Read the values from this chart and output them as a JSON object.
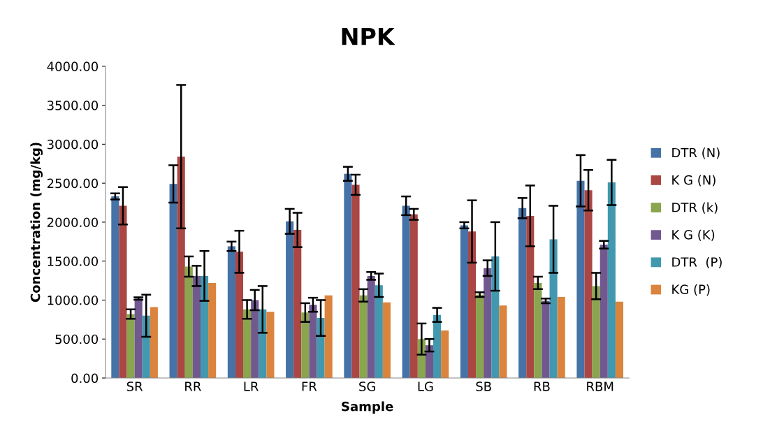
{
  "chart_data": {
    "type": "bar",
    "title": "NPK",
    "xlabel": "Sample",
    "ylabel": "Concentration (mg/kg)",
    "categories": [
      "SR",
      "RR",
      "LR",
      "FR",
      "SG",
      "LG",
      "SB",
      "RB",
      "RBM"
    ],
    "ylim": [
      0,
      4000
    ],
    "yticks": [
      {
        "value": 0,
        "label": "0.00"
      },
      {
        "value": 500,
        "label": "500.00"
      },
      {
        "value": 1000,
        "label": "1000.00"
      },
      {
        "value": 1500,
        "label": "1500.00"
      },
      {
        "value": 2000,
        "label": "2000.00"
      },
      {
        "value": 2500,
        "label": "2500.00"
      },
      {
        "value": 3000,
        "label": "3000.00"
      },
      {
        "value": 3500,
        "label": "3500.00"
      },
      {
        "value": 4000,
        "label": "4000.00"
      }
    ],
    "grid": false,
    "legend": "right",
    "series": [
      {
        "name": "DTR (N)",
        "color": "#4572a7",
        "values": [
          2330,
          2490,
          1690,
          2010,
          2620,
          2210,
          1960,
          2180,
          2530
        ],
        "errors": [
          40,
          240,
          60,
          160,
          90,
          120,
          40,
          130,
          330
        ]
      },
      {
        "name": "K G (N)",
        "color": "#aa4643",
        "values": [
          2210,
          2840,
          1620,
          1900,
          2480,
          2100,
          1880,
          2080,
          2410
        ],
        "errors": [
          240,
          920,
          270,
          220,
          130,
          70,
          400,
          390,
          260
        ]
      },
      {
        "name": "DTR (k)",
        "color": "#89a54e",
        "values": [
          820,
          1430,
          880,
          840,
          1060,
          500,
          1070,
          1220,
          1180
        ],
        "errors": [
          60,
          130,
          120,
          120,
          80,
          200,
          30,
          80,
          170
        ]
      },
      {
        "name": "K G (K)",
        "color": "#71588f",
        "values": [
          1020,
          1310,
          1000,
          940,
          1310,
          420,
          1410,
          990,
          1710
        ],
        "errors": [
          15,
          130,
          130,
          90,
          50,
          80,
          100,
          30,
          50
        ]
      },
      {
        "name": "DTR  (P)",
        "color": "#4198af",
        "values": [
          800,
          1310,
          880,
          770,
          1190,
          810,
          1560,
          1780,
          2510
        ],
        "errors": [
          270,
          320,
          300,
          230,
          150,
          90,
          440,
          430,
          290
        ]
      },
      {
        "name": "KG (P)",
        "color": "#db843d",
        "values": [
          910,
          1220,
          850,
          1060,
          970,
          610,
          930,
          1040,
          980
        ]
      }
    ]
  }
}
